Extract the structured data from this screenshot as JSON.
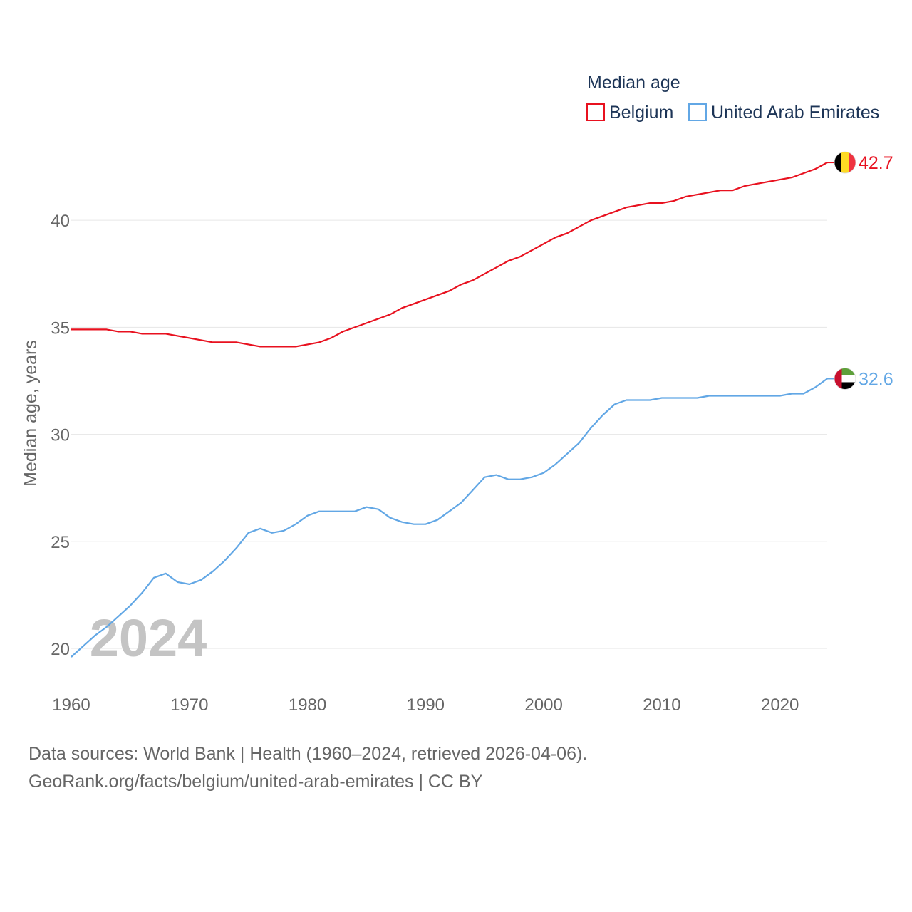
{
  "chart_data": {
    "type": "line",
    "legend_title": "Median age",
    "ylabel": "Median age, years",
    "xlabel": "",
    "year_watermark": "2024",
    "ylim": [
      19.4,
      44.2
    ],
    "xlim": [
      1960,
      2024
    ],
    "x_ticks": [
      1960,
      1970,
      1980,
      1990,
      2000,
      2010,
      2020
    ],
    "y_ticks": [
      20,
      25,
      30,
      35,
      40
    ],
    "x": [
      1960,
      1961,
      1962,
      1963,
      1964,
      1965,
      1966,
      1967,
      1968,
      1969,
      1970,
      1971,
      1972,
      1973,
      1974,
      1975,
      1976,
      1977,
      1978,
      1979,
      1980,
      1981,
      1982,
      1983,
      1984,
      1985,
      1986,
      1987,
      1988,
      1989,
      1990,
      1991,
      1992,
      1993,
      1994,
      1995,
      1996,
      1997,
      1998,
      1999,
      2000,
      2001,
      2002,
      2003,
      2004,
      2005,
      2006,
      2007,
      2008,
      2009,
      2010,
      2011,
      2012,
      2013,
      2014,
      2015,
      2016,
      2017,
      2018,
      2019,
      2020,
      2021,
      2022,
      2023,
      2024
    ],
    "series": [
      {
        "name": "Belgium",
        "color": "#e8111f",
        "end_label": "42.7",
        "values": [
          34.9,
          34.9,
          34.9,
          34.9,
          34.8,
          34.8,
          34.7,
          34.7,
          34.7,
          34.6,
          34.5,
          34.4,
          34.3,
          34.3,
          34.3,
          34.2,
          34.1,
          34.1,
          34.1,
          34.1,
          34.2,
          34.3,
          34.5,
          34.8,
          35.0,
          35.2,
          35.4,
          35.6,
          35.9,
          36.1,
          36.3,
          36.5,
          36.7,
          37.0,
          37.2,
          37.5,
          37.8,
          38.1,
          38.3,
          38.6,
          38.9,
          39.2,
          39.4,
          39.7,
          40.0,
          40.2,
          40.4,
          40.6,
          40.7,
          40.8,
          40.8,
          40.9,
          41.1,
          41.2,
          41.3,
          41.4,
          41.4,
          41.6,
          41.7,
          41.8,
          41.9,
          42.0,
          42.2,
          42.4,
          42.7
        ]
      },
      {
        "name": "United Arab Emirates",
        "color": "#62a7e5",
        "end_label": "32.6",
        "values": [
          19.6,
          20.1,
          20.6,
          21.0,
          21.5,
          22.0,
          22.6,
          23.3,
          23.5,
          23.1,
          23.0,
          23.2,
          23.6,
          24.1,
          24.7,
          25.4,
          25.6,
          25.4,
          25.5,
          25.8,
          26.2,
          26.4,
          26.4,
          26.4,
          26.4,
          26.6,
          26.5,
          26.1,
          25.9,
          25.8,
          25.8,
          26.0,
          26.4,
          26.8,
          27.4,
          28.0,
          28.1,
          27.9,
          27.9,
          28.0,
          28.2,
          28.6,
          29.1,
          29.6,
          30.3,
          30.9,
          31.4,
          31.6,
          31.6,
          31.6,
          31.7,
          31.7,
          31.7,
          31.7,
          31.8,
          31.8,
          31.8,
          31.8,
          31.8,
          31.8,
          31.8,
          31.9,
          31.9,
          32.2,
          32.6
        ]
      }
    ]
  },
  "footer": {
    "line1": "Data sources: World Bank | Health (1960–2024, retrieved 2026-04-06).",
    "line2": "GeoRank.org/facts/belgium/united-arab-emirates | CC BY"
  },
  "colors": {
    "grid": "#e6e6e6",
    "axis_text": "#666666",
    "legend_text": "#1d3557",
    "watermark": "#c4c4c4",
    "flag_be_black": "#000000",
    "flag_be_yellow": "#fdda24",
    "flag_be_red": "#ef3340",
    "flag_ae_red": "#c8102e",
    "flag_ae_green": "#5ea03a",
    "flag_ae_white": "#ffffff",
    "flag_ae_black": "#000000"
  }
}
